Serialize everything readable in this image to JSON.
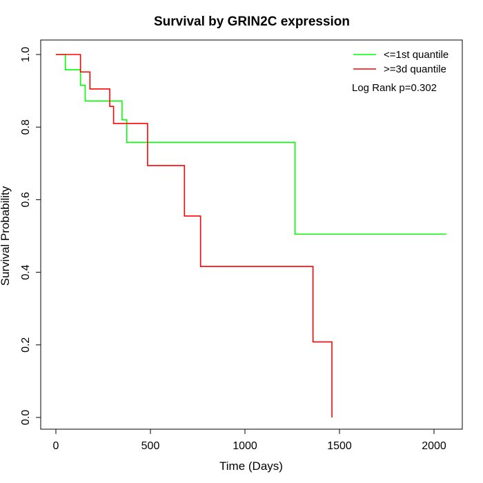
{
  "chart_data": {
    "type": "line",
    "title": "Survival by GRIN2C expression",
    "xlabel": "Time (Days)",
    "ylabel": "Survival Probability",
    "xlim": [
      0,
      2070
    ],
    "ylim": [
      0,
      1
    ],
    "x_ticks": [
      0,
      500,
      1000,
      1500,
      2000
    ],
    "x_tick_labels": [
      "0",
      "500",
      "1000",
      "1500",
      "2000"
    ],
    "y_ticks": [
      0,
      0.2,
      0.4,
      0.6,
      0.8,
      1.0
    ],
    "y_tick_labels": [
      "0.0",
      "0.2",
      "0.4",
      "0.6",
      "0.8",
      "1.0"
    ],
    "grid": false,
    "legend_position": "top-right",
    "annotation": "Log Rank p=0.302",
    "series": [
      {
        "name": "<=1st quantile",
        "color": "#00ff00",
        "x": [
          0,
          50,
          130,
          155,
          350,
          375,
          1265,
          2065
        ],
        "y": [
          1.0,
          0.958,
          0.915,
          0.872,
          0.82,
          0.758,
          0.505,
          0.505
        ]
      },
      {
        "name": ">=3d quantile",
        "color": "#ff0000",
        "x": [
          0,
          130,
          180,
          285,
          305,
          485,
          680,
          765,
          1360,
          1460
        ],
        "y": [
          1.0,
          0.952,
          0.905,
          0.857,
          0.81,
          0.694,
          0.555,
          0.416,
          0.208,
          0.0
        ]
      }
    ]
  }
}
